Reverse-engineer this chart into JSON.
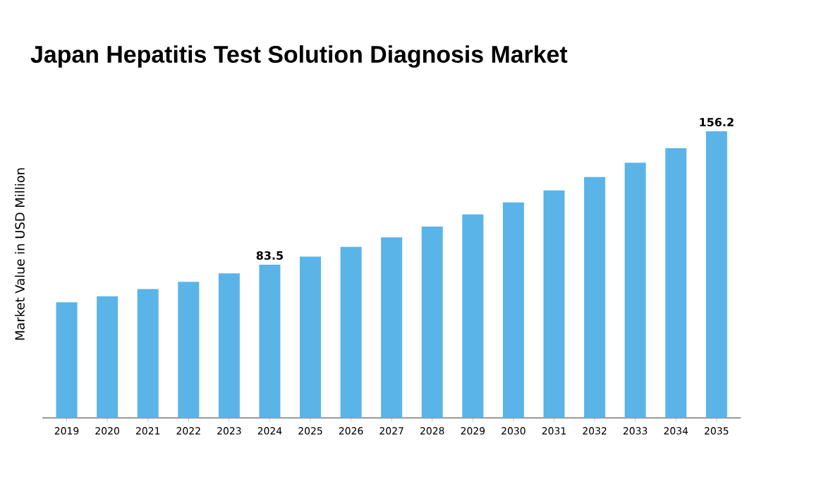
{
  "chart_data": {
    "type": "bar",
    "title": "Japan Hepatitis Test Solution Diagnosis Market",
    "ylabel": "Market Value in USD Million",
    "categories": [
      "2019",
      "2020",
      "2021",
      "2022",
      "2023",
      "2024",
      "2025",
      "2026",
      "2027",
      "2028",
      "2029",
      "2030",
      "2031",
      "2032",
      "2033",
      "2034",
      "2035"
    ],
    "values": [
      63.0,
      66.3,
      70.2,
      74.2,
      78.8,
      83.5,
      87.9,
      93.2,
      98.4,
      104.3,
      110.9,
      117.5,
      124.0,
      131.3,
      139.1,
      147.0,
      156.2
    ],
    "value_labels": [
      null,
      null,
      null,
      null,
      null,
      "83.5",
      null,
      null,
      null,
      null,
      null,
      null,
      null,
      null,
      null,
      null,
      "156.2"
    ],
    "color": "#5ab4e8"
  }
}
